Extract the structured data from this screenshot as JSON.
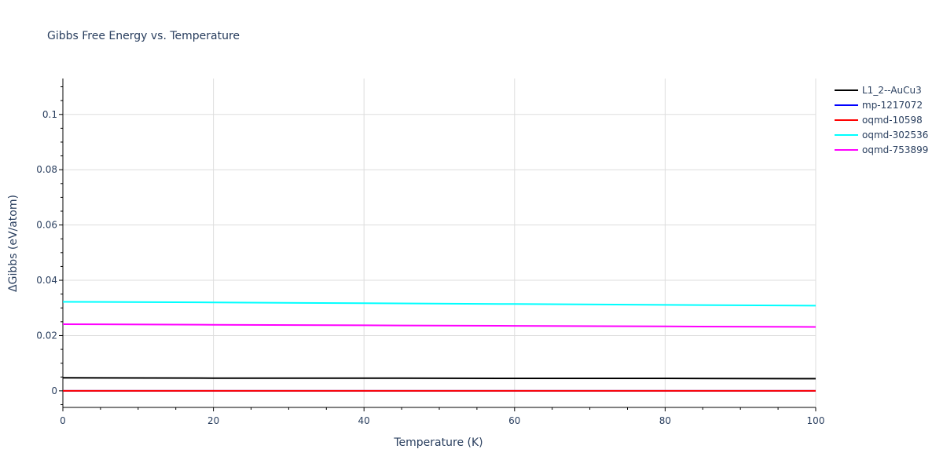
{
  "chart_data": {
    "type": "line",
    "title": "Gibbs Free Energy vs. Temperature",
    "xlabel": "Temperature (K)",
    "ylabel": "ΔGibbs (eV/atom)",
    "xlim": [
      0,
      100
    ],
    "ylim": [
      -0.006,
      0.113
    ],
    "x_ticks": [
      0,
      20,
      40,
      60,
      80,
      100
    ],
    "x_tick_labels": [
      "0",
      "20",
      "40",
      "60",
      "80",
      "100"
    ],
    "y_ticks": [
      0,
      0.02,
      0.04,
      0.06,
      0.08,
      0.1
    ],
    "y_tick_labels": [
      "0",
      "0.02",
      "0.04",
      "0.06",
      "0.08",
      "0.1"
    ],
    "grid": true,
    "legend_position": "top-right",
    "series": [
      {
        "name": "L1_2--AuCu3",
        "color": "#000000",
        "x": [
          0,
          20,
          40,
          60,
          80,
          100
        ],
        "y": [
          0.0047,
          0.0046,
          0.0046,
          0.0045,
          0.0045,
          0.0044
        ]
      },
      {
        "name": "mp-1217072",
        "color": "#0000ff",
        "x": [
          0,
          20,
          40,
          60,
          80,
          100
        ],
        "y": [
          0,
          0,
          0,
          0,
          0,
          0
        ]
      },
      {
        "name": "oqmd-10598",
        "color": "#ff0000",
        "x": [
          0,
          20,
          40,
          60,
          80,
          100
        ],
        "y": [
          0,
          0,
          0,
          0,
          0,
          0
        ]
      },
      {
        "name": "oqmd-302536",
        "color": "#00ffff",
        "x": [
          0,
          20,
          40,
          60,
          80,
          100
        ],
        "y": [
          0.0322,
          0.032,
          0.0317,
          0.0314,
          0.0311,
          0.0308
        ]
      },
      {
        "name": "oqmd-753899",
        "color": "#ff00ff",
        "x": [
          0,
          20,
          40,
          60,
          80,
          100
        ],
        "y": [
          0.0241,
          0.0239,
          0.0237,
          0.0235,
          0.0233,
          0.0231
        ]
      }
    ]
  }
}
